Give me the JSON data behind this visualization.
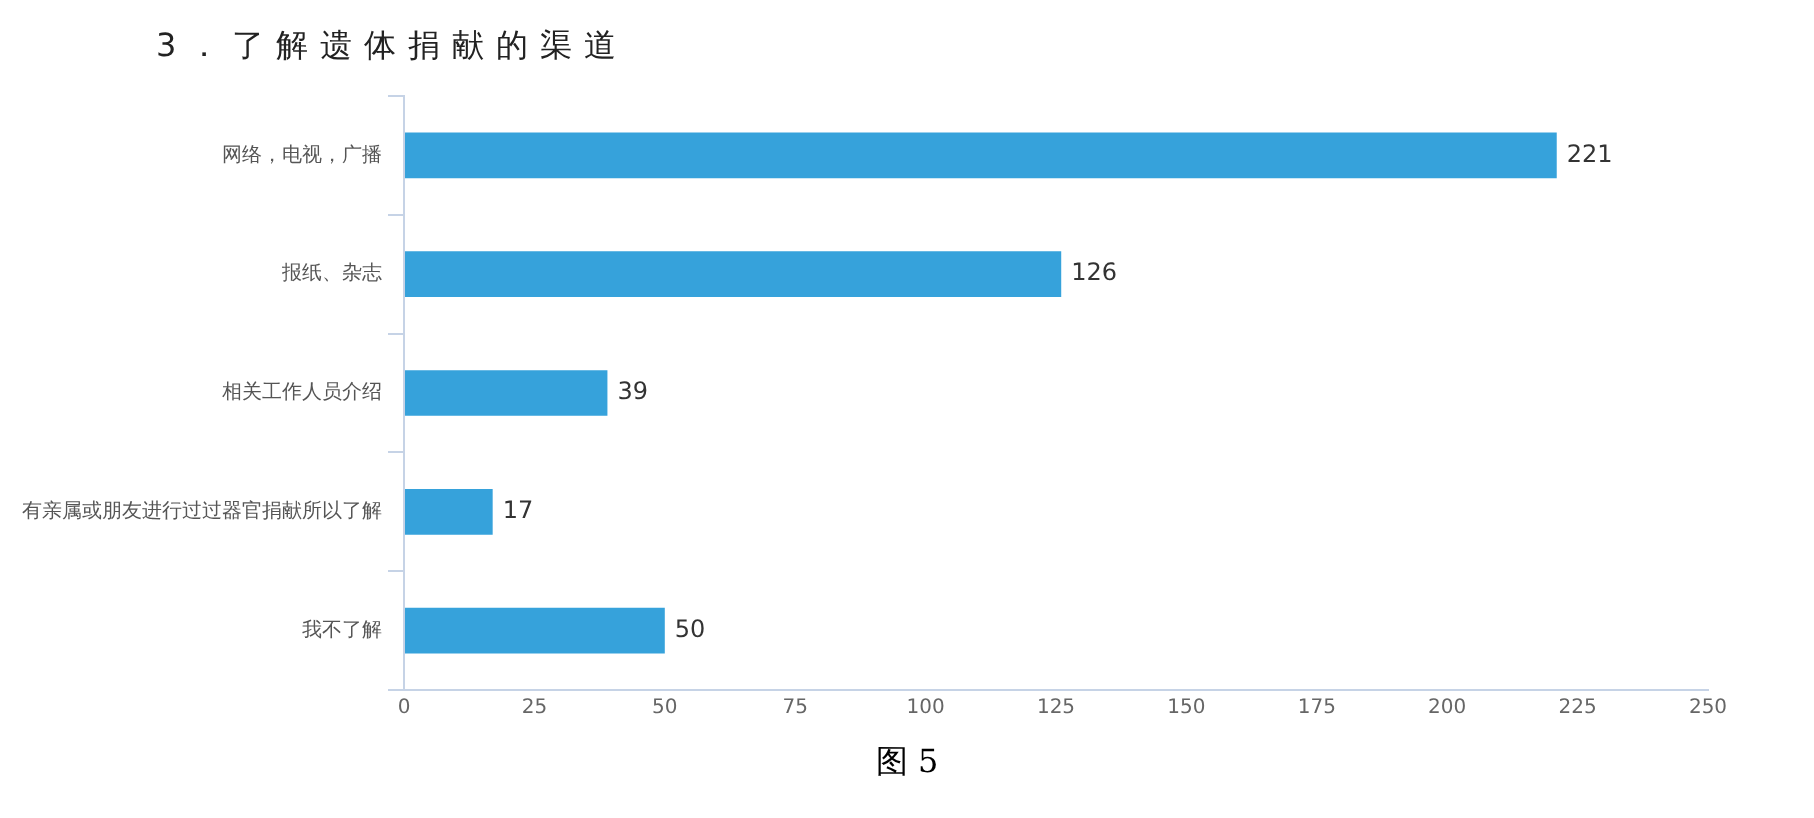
{
  "chart_data": {
    "type": "bar",
    "orientation": "horizontal",
    "title": "3．了解遗体捐献的渠道",
    "categories": [
      "网络，电视，广播",
      "报纸、杂志",
      "相关工作人员介绍",
      "有亲属或朋友进行过过器官捐献所以了解",
      "我不了解"
    ],
    "values": [
      221,
      126,
      39,
      17,
      50
    ],
    "color": "#36a2db",
    "xlim": [
      0,
      250
    ],
    "xticks": [
      0,
      25,
      50,
      75,
      100,
      125,
      150,
      175,
      200,
      225,
      250
    ],
    "grid": false,
    "legend": false,
    "data_labels": true,
    "annotations": [
      "图 5"
    ]
  }
}
